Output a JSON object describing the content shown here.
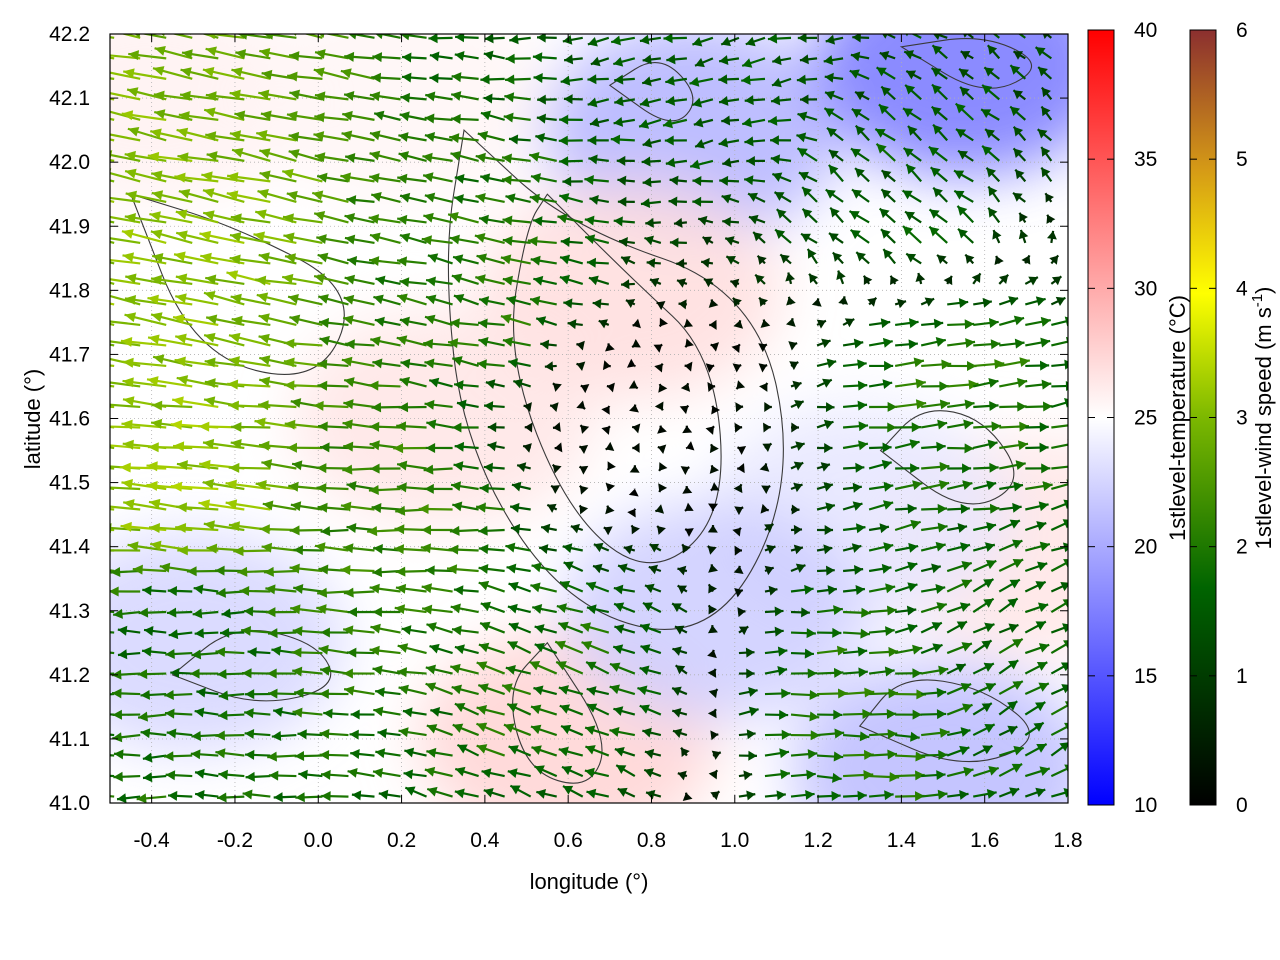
{
  "chart_data": {
    "type": "heatmap",
    "xlabel": "longitude (°)",
    "ylabel": "latitude (°)",
    "xlim": [
      -0.5,
      1.8
    ],
    "ylim": [
      41.0,
      42.2
    ],
    "x_ticks": [
      "-0.4",
      "-0.2",
      "0.0",
      "0.2",
      "0.4",
      "0.6",
      "0.8",
      "1.0",
      "1.2",
      "1.4",
      "1.6",
      "1.8"
    ],
    "x_tick_values": [
      -0.4,
      -0.2,
      0.0,
      0.2,
      0.4,
      0.6,
      0.8,
      1.0,
      1.2,
      1.4,
      1.6,
      1.8
    ],
    "y_ticks": [
      "41.0",
      "41.1",
      "41.2",
      "41.3",
      "41.4",
      "41.5",
      "41.6",
      "41.7",
      "41.8",
      "41.9",
      "42.0",
      "42.1",
      "42.2"
    ],
    "y_tick_values": [
      41.0,
      41.1,
      41.2,
      41.3,
      41.4,
      41.5,
      41.6,
      41.7,
      41.8,
      41.9,
      42.0,
      42.1,
      42.2
    ],
    "grid": true,
    "temperature_colorbar": {
      "label": "1stlevel-temperature (°C)",
      "range": [
        10,
        40
      ],
      "ticks": [
        "10",
        "15",
        "20",
        "25",
        "30",
        "35",
        "40"
      ],
      "tick_values": [
        10,
        15,
        20,
        25,
        30,
        35,
        40
      ],
      "colors": {
        "low": "#0000ff",
        "mid": "#ffffff",
        "high": "#ff0000"
      }
    },
    "wind_colorbar": {
      "label_main": "1stlevel-wind speed (m s",
      "label_sup": "-1",
      "label_end": ")",
      "range": [
        0,
        6
      ],
      "ticks": [
        "0",
        "1",
        "2",
        "3",
        "4",
        "5",
        "6"
      ],
      "tick_values": [
        0,
        1,
        2,
        3,
        4,
        5,
        6
      ],
      "colors": [
        "#000000",
        "#006400",
        "#7cb800",
        "#ffff00",
        "#d59a16",
        "#8b2f2f"
      ]
    },
    "temperature_field_regions": [
      {
        "lon": -0.4,
        "lat": 42.1,
        "temp": 25.8
      },
      {
        "lon": 0.2,
        "lat": 42.1,
        "temp": 25.5
      },
      {
        "lon": 0.9,
        "lat": 42.05,
        "temp": 20.5
      },
      {
        "lon": 1.55,
        "lat": 42.15,
        "temp": 17.0
      },
      {
        "lon": 0.75,
        "lat": 41.8,
        "temp": 27.0
      },
      {
        "lon": 0.3,
        "lat": 41.6,
        "temp": 26.5
      },
      {
        "lon": -0.3,
        "lat": 41.25,
        "temp": 22.5
      },
      {
        "lon": 0.6,
        "lat": 41.1,
        "temp": 27.5
      },
      {
        "lon": 1.5,
        "lat": 41.05,
        "temp": 21.0
      },
      {
        "lon": 1.7,
        "lat": 41.4,
        "temp": 26.5
      },
      {
        "lon": 1.3,
        "lat": 41.45,
        "temp": 23.5
      },
      {
        "lon": 0.95,
        "lat": 41.3,
        "temp": 22.0
      }
    ],
    "wind_field_regions": [
      {
        "lon": -0.3,
        "lat": 41.5,
        "u": -3.2,
        "v": 0.3
      },
      {
        "lon": -0.3,
        "lat": 41.85,
        "u": -3.0,
        "v": 0.6
      },
      {
        "lon": -0.3,
        "lat": 41.25,
        "u": -1.8,
        "v": 0.0
      },
      {
        "lon": 0.2,
        "lat": 41.45,
        "u": -2.2,
        "v": 0.1
      },
      {
        "lon": 0.4,
        "lat": 41.8,
        "u": -2.0,
        "v": 0.4
      },
      {
        "lon": 0.75,
        "lat": 41.6,
        "u": 0.0,
        "v": 0.0
      },
      {
        "lon": 0.6,
        "lat": 41.2,
        "u": -1.8,
        "v": 0.6
      },
      {
        "lon": 1.3,
        "lat": 41.15,
        "u": 2.0,
        "v": 0.0
      },
      {
        "lon": 1.5,
        "lat": 41.65,
        "u": 2.0,
        "v": 0.2
      },
      {
        "lon": 1.4,
        "lat": 41.95,
        "u": -1.2,
        "v": 1.0
      },
      {
        "lon": 1.0,
        "lat": 42.15,
        "u": -1.5,
        "v": -0.3
      },
      {
        "lon": 1.6,
        "lat": 41.2,
        "u": 1.5,
        "v": 0.8
      }
    ]
  }
}
